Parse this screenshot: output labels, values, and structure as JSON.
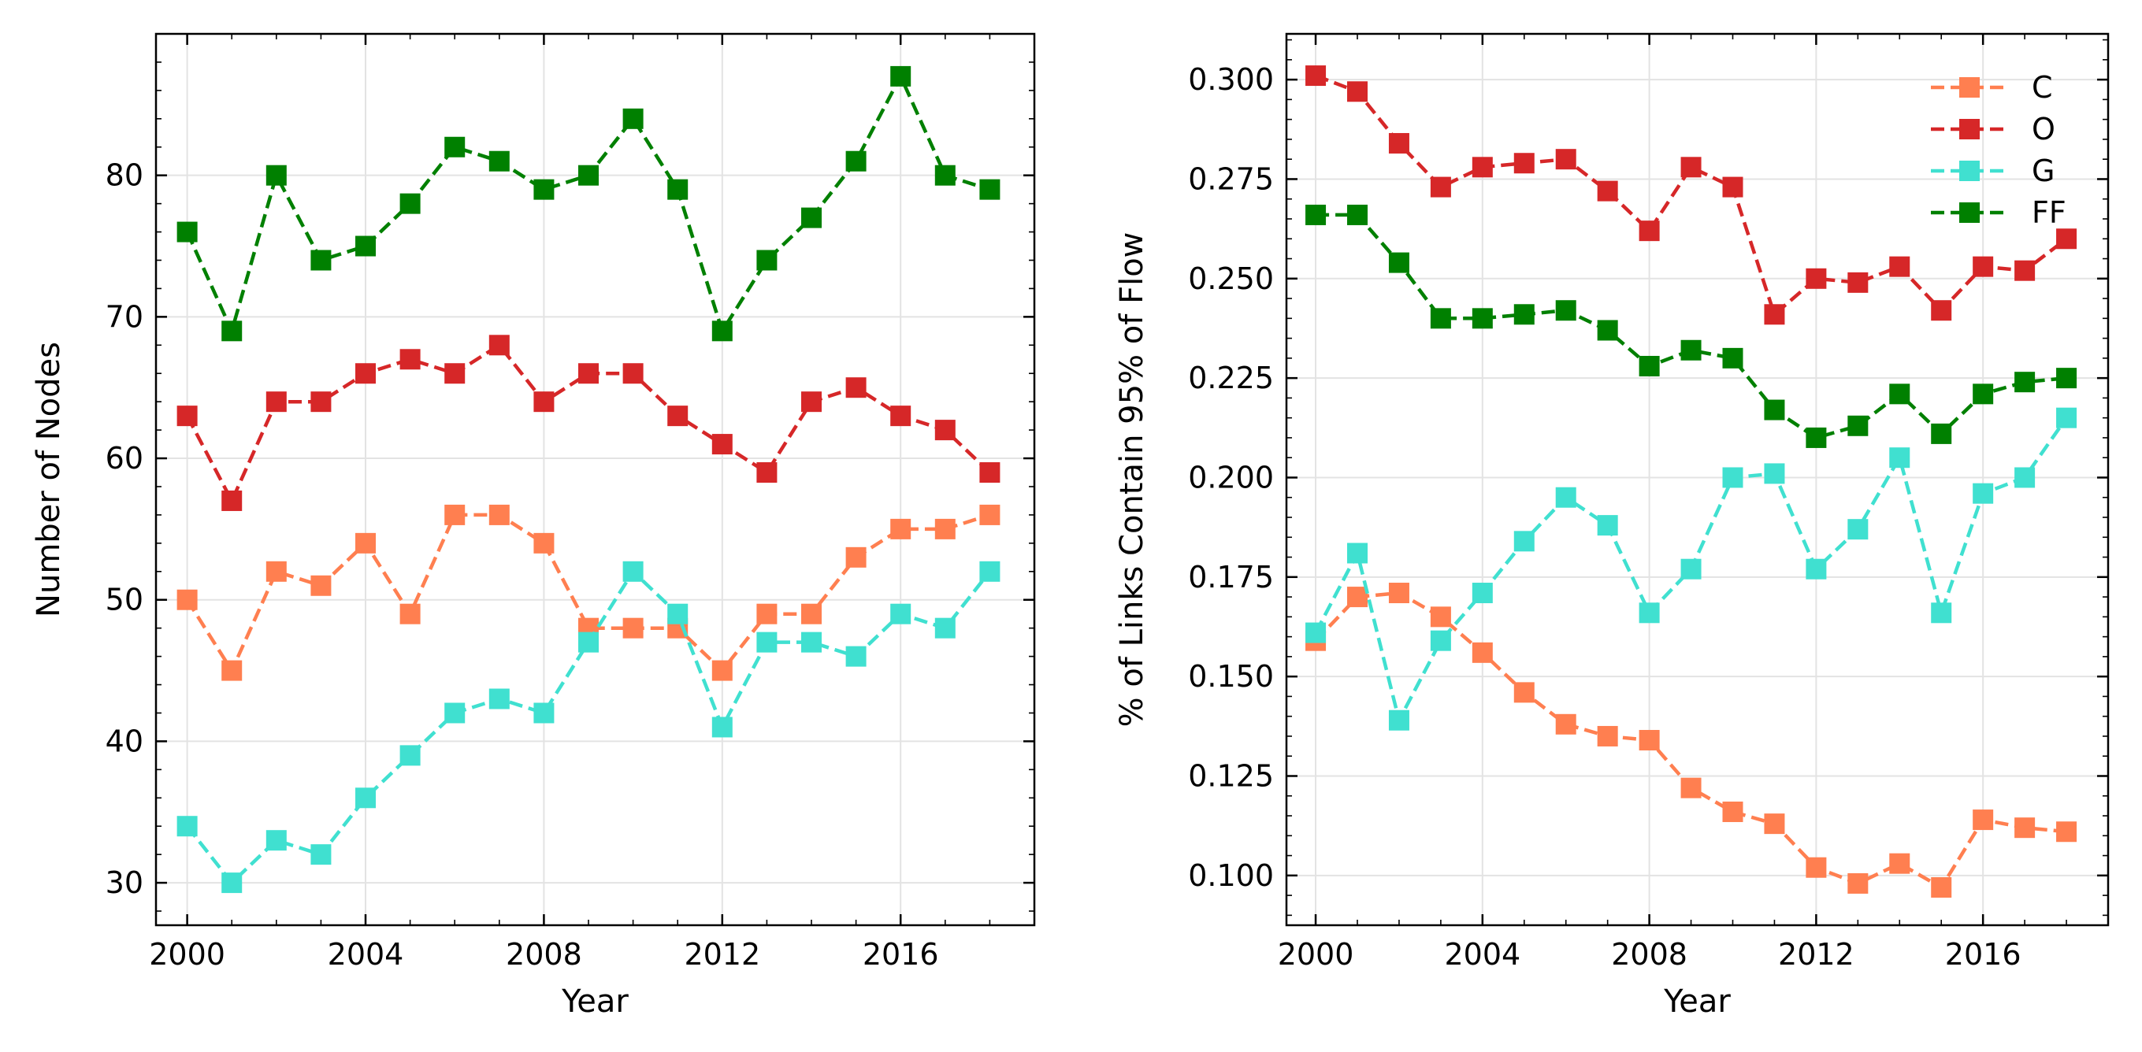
{
  "chart_data": [
    {
      "type": "line",
      "title": "",
      "xlabel": "Year",
      "ylabel": "Number of Nodes",
      "xlim": [
        1999.3,
        2019.0
      ],
      "ylim": [
        27,
        90
      ],
      "xticks": [
        2000,
        2004,
        2008,
        2012,
        2016
      ],
      "yticks": [
        30,
        40,
        50,
        60,
        70,
        80
      ],
      "xtick_labels": [
        "2000",
        "2004",
        "2008",
        "2012",
        "2016"
      ],
      "ytick_labels": [
        "30",
        "40",
        "50",
        "60",
        "70",
        "80"
      ],
      "grid": true,
      "x": [
        2000,
        2001,
        2002,
        2003,
        2004,
        2005,
        2006,
        2007,
        2008,
        2009,
        2010,
        2011,
        2012,
        2013,
        2014,
        2015,
        2016,
        2017,
        2018
      ],
      "series": [
        {
          "name": "C",
          "color": "#ff7f50",
          "values": [
            50,
            45,
            52,
            51,
            54,
            49,
            56,
            56,
            54,
            48,
            48,
            48,
            45,
            49,
            49,
            53,
            55,
            55,
            56
          ]
        },
        {
          "name": "O",
          "color": "#d62728",
          "values": [
            63,
            57,
            64,
            64,
            66,
            67,
            66,
            68,
            64,
            66,
            66,
            63,
            61,
            59,
            64,
            65,
            63,
            62,
            59
          ]
        },
        {
          "name": "G",
          "color": "#40e0d0",
          "values": [
            34,
            30,
            33,
            32,
            36,
            39,
            42,
            43,
            42,
            47,
            52,
            49,
            41,
            47,
            47,
            46,
            49,
            48,
            52
          ]
        },
        {
          "name": "FF",
          "color": "#008000",
          "values": [
            76,
            69,
            80,
            74,
            75,
            78,
            82,
            81,
            79,
            80,
            84,
            79,
            69,
            74,
            77,
            81,
            87,
            80,
            79
          ]
        }
      ]
    },
    {
      "type": "line",
      "title": "",
      "xlabel": "Year",
      "ylabel": "% of Links Contain 95% of Flow",
      "xlim": [
        1999.3,
        2019.0
      ],
      "ylim": [
        0.0875,
        0.3115
      ],
      "xticks": [
        2000,
        2004,
        2008,
        2012,
        2016
      ],
      "yticks": [
        0.1,
        0.125,
        0.15,
        0.175,
        0.2,
        0.225,
        0.25,
        0.275,
        0.3
      ],
      "xtick_labels": [
        "2000",
        "2004",
        "2008",
        "2012",
        "2016"
      ],
      "ytick_labels": [
        "0.100",
        "0.125",
        "0.150",
        "0.175",
        "0.200",
        "0.225",
        "0.250",
        "0.275",
        "0.300"
      ],
      "grid": true,
      "legend_position": "top-right",
      "x": [
        2000,
        2001,
        2002,
        2003,
        2004,
        2005,
        2006,
        2007,
        2008,
        2009,
        2010,
        2011,
        2012,
        2013,
        2014,
        2015,
        2016,
        2017,
        2018
      ],
      "series": [
        {
          "name": "C",
          "color": "#ff7f50",
          "values": [
            0.159,
            0.17,
            0.171,
            0.165,
            0.156,
            0.146,
            0.138,
            0.135,
            0.134,
            0.122,
            0.116,
            0.113,
            0.102,
            0.098,
            0.103,
            0.097,
            0.114,
            0.112,
            0.111
          ]
        },
        {
          "name": "O",
          "color": "#d62728",
          "values": [
            0.301,
            0.297,
            0.284,
            0.273,
            0.278,
            0.279,
            0.28,
            0.272,
            0.262,
            0.278,
            0.273,
            0.241,
            0.25,
            0.249,
            0.253,
            0.242,
            0.253,
            0.252,
            0.26
          ]
        },
        {
          "name": "G",
          "color": "#40e0d0",
          "values": [
            0.161,
            0.181,
            0.139,
            0.159,
            0.171,
            0.184,
            0.195,
            0.188,
            0.166,
            0.177,
            0.2,
            0.201,
            0.177,
            0.187,
            0.205,
            0.166,
            0.196,
            0.2,
            0.215
          ]
        },
        {
          "name": "FF",
          "color": "#008000",
          "values": [
            0.266,
            0.266,
            0.254,
            0.24,
            0.24,
            0.241,
            0.242,
            0.237,
            0.228,
            0.232,
            0.23,
            0.217,
            0.21,
            0.213,
            0.221,
            0.211,
            0.221,
            0.224,
            0.225
          ]
        }
      ]
    }
  ]
}
